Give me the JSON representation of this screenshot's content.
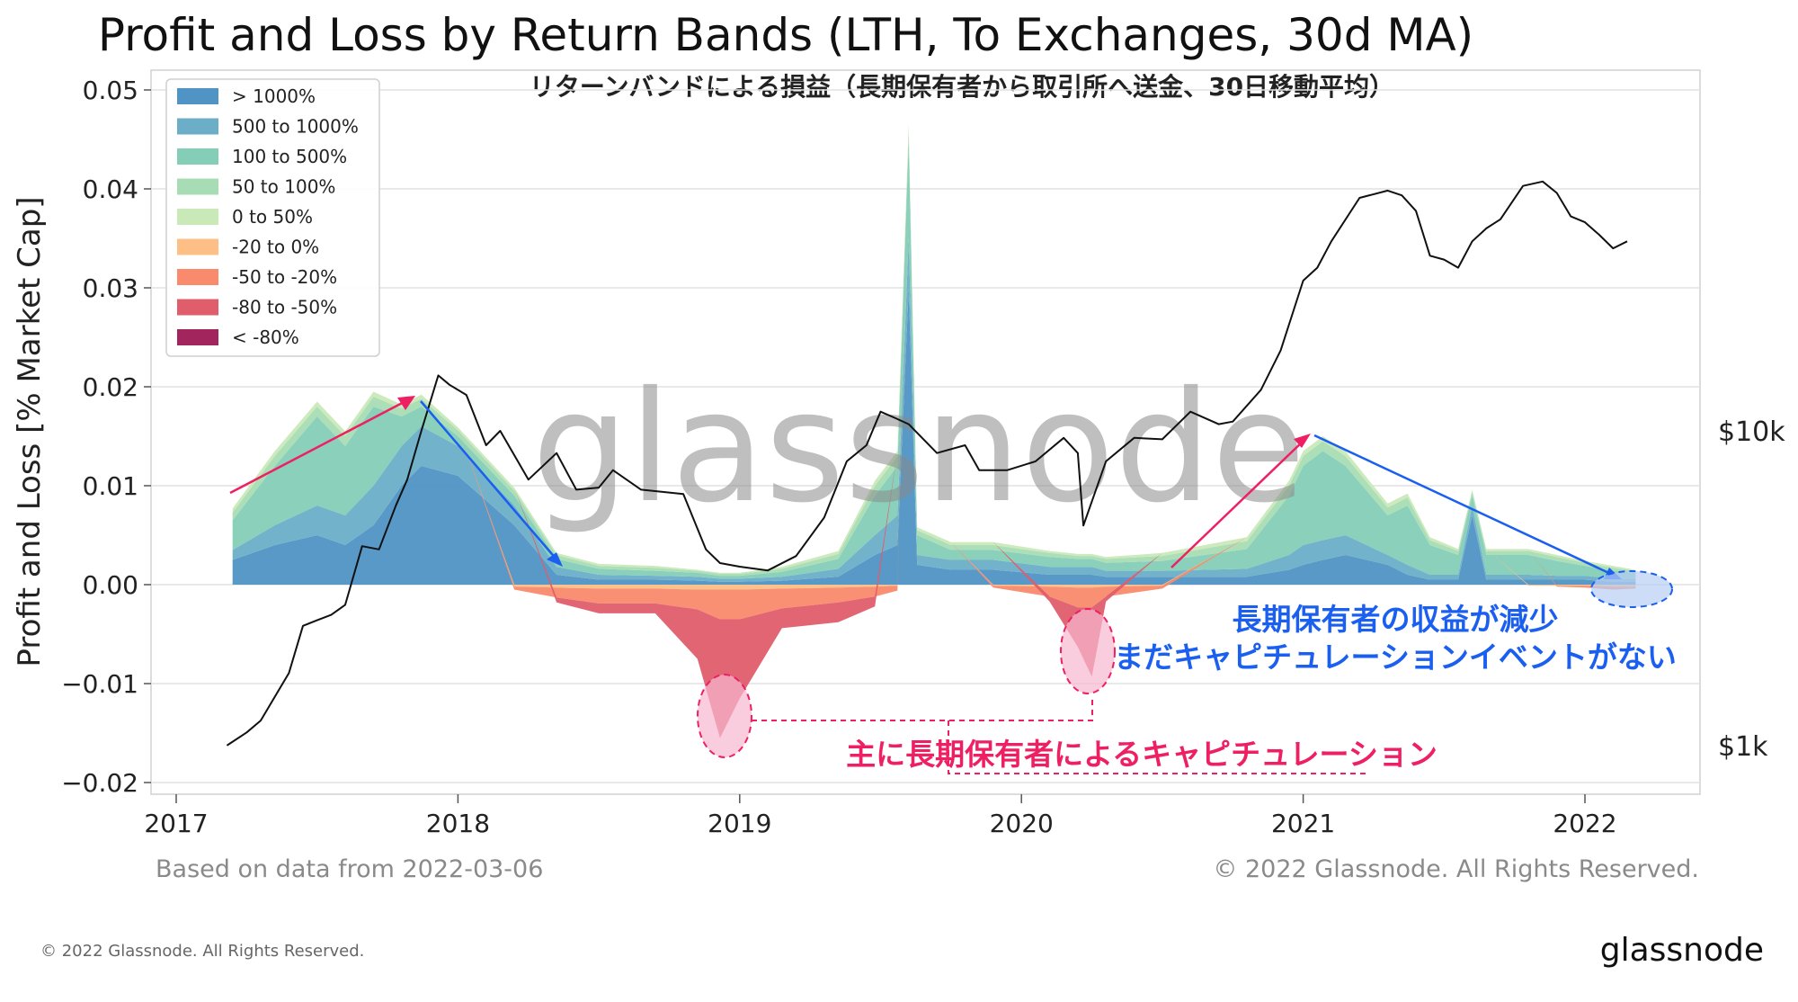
{
  "title": "Profit and Loss by Return Bands (LTH, To Exchanges, 30d MA)",
  "subtitle": "リターンバンドによる損益（長期保有者から取引所へ送金、30日移動平均）",
  "watermark": "glassnode",
  "footer": {
    "left": "Based on data from 2022-03-06",
    "right": "© 2022 Glassnode. All Rights Reserved.",
    "bottom_left": "© 2022 Glassnode. All Rights Reserved.",
    "bottom_brand": "glassnode"
  },
  "annotations": {
    "blue_line1": "長期保有者の収益が減少",
    "blue_line2": "まだキャピチュレーションイベントがない",
    "red": "主に長期保有者によるキャピチュレーション",
    "colors": {
      "blue": "#1a5ff0",
      "red": "#ee1f63"
    }
  },
  "chart_data": {
    "type": "area",
    "title": "Profit and Loss by Return Bands (LTH, To Exchanges, 30d MA)",
    "ylabel": "Profit and Loss [% Market Cap]",
    "xlabel": "",
    "ylim": [
      -0.02,
      0.05
    ],
    "xlim": [
      2016.95,
      2022.4
    ],
    "y_ticks": [
      "0.05",
      "0.04",
      "0.03",
      "0.02",
      "0.01",
      "0.00",
      "−0.01",
      "−0.02"
    ],
    "y_tick_values": [
      0.05,
      0.04,
      0.03,
      0.02,
      0.01,
      0.0,
      -0.01,
      -0.02
    ],
    "x_ticks": [
      "2017",
      "2018",
      "2019",
      "2020",
      "2021",
      "2022"
    ],
    "x_tick_values": [
      2017,
      2018,
      2019,
      2020,
      2021,
      2022
    ],
    "right_axis": {
      "ticks": [
        "$10k",
        "$1k"
      ],
      "values": [
        10000,
        1000
      ],
      "scale": "log",
      "range": [
        700,
        140000
      ]
    },
    "grid": true,
    "legend_position": "top-left",
    "x": [
      2017.2,
      2017.35,
      2017.5,
      2017.6,
      2017.7,
      2017.8,
      2017.87,
      2018.0,
      2018.2,
      2018.35,
      2018.5,
      2018.7,
      2018.85,
      2018.93,
      2019.0,
      2019.15,
      2019.35,
      2019.48,
      2019.56,
      2019.6,
      2019.63,
      2019.75,
      2019.9,
      2020.1,
      2020.2,
      2020.25,
      2020.3,
      2020.5,
      2020.8,
      2020.95,
      2021.0,
      2021.07,
      2021.15,
      2021.3,
      2021.37,
      2021.45,
      2021.55,
      2021.6,
      2021.65,
      2021.8,
      2021.9,
      2022.0,
      2022.1,
      2022.18
    ],
    "series": [
      {
        "name": "> 1000%",
        "color": "#4f94c4",
        "values": [
          0.0025,
          0.004,
          0.005,
          0.004,
          0.006,
          0.01,
          0.012,
          0.011,
          0.006,
          0.001,
          0.0005,
          0.0005,
          0.0004,
          0.0003,
          0.0003,
          0.0004,
          0.0008,
          0.003,
          0.004,
          0.03,
          0.002,
          0.0015,
          0.0015,
          0.001,
          0.001,
          0.001,
          0.0008,
          0.0008,
          0.0008,
          0.0015,
          0.002,
          0.0025,
          0.003,
          0.002,
          0.001,
          0.0005,
          0.0005,
          0.007,
          0.0005,
          0.0005,
          0.0005,
          0.0005,
          0.0003,
          0.0003
        ]
      },
      {
        "name": "500 to 1000%",
        "color": "#6caec8",
        "values": [
          0.001,
          0.002,
          0.003,
          0.003,
          0.004,
          0.004,
          0.004,
          0.003,
          0.002,
          0.0008,
          0.0005,
          0.0004,
          0.0004,
          0.0003,
          0.0003,
          0.0004,
          0.0008,
          0.002,
          0.003,
          0.005,
          0.001,
          0.001,
          0.001,
          0.0008,
          0.0008,
          0.0008,
          0.0006,
          0.0006,
          0.0008,
          0.0015,
          0.002,
          0.002,
          0.002,
          0.001,
          0.001,
          0.0005,
          0.0005,
          0.001,
          0.0005,
          0.0005,
          0.0004,
          0.0004,
          0.0003,
          0.0003
        ]
      },
      {
        "name": "100 to 500%",
        "color": "#84cdb7",
        "values": [
          0.003,
          0.006,
          0.009,
          0.007,
          0.008,
          0.003,
          0.002,
          0.001,
          0.001,
          0.0008,
          0.0006,
          0.0005,
          0.0004,
          0.0003,
          0.0003,
          0.0005,
          0.001,
          0.004,
          0.005,
          0.01,
          0.002,
          0.001,
          0.001,
          0.001,
          0.0008,
          0.0008,
          0.0008,
          0.001,
          0.002,
          0.006,
          0.008,
          0.009,
          0.007,
          0.004,
          0.006,
          0.003,
          0.002,
          0.001,
          0.002,
          0.002,
          0.0015,
          0.001,
          0.0008,
          0.0006
        ]
      },
      {
        "name": "50 to 100%",
        "color": "#a8dcb4",
        "values": [
          0.0008,
          0.001,
          0.001,
          0.001,
          0.001,
          0.0008,
          0.0008,
          0.0006,
          0.0005,
          0.0004,
          0.0003,
          0.0003,
          0.0002,
          0.0002,
          0.0002,
          0.0003,
          0.0005,
          0.001,
          0.001,
          0.001,
          0.0005,
          0.0005,
          0.0005,
          0.0004,
          0.0003,
          0.0003,
          0.0004,
          0.0005,
          0.0008,
          0.001,
          0.001,
          0.001,
          0.001,
          0.0008,
          0.0008,
          0.0005,
          0.0004,
          0.0004,
          0.0004,
          0.0004,
          0.0004,
          0.0003,
          0.0003,
          0.0002
        ]
      },
      {
        "name": "0 to 50%",
        "color": "#c9e9b8",
        "values": [
          0.0004,
          0.0005,
          0.0005,
          0.0005,
          0.0005,
          0.0004,
          0.0004,
          0.0003,
          0.0003,
          0.0002,
          0.0002,
          0.0002,
          0.0001,
          0.0001,
          0.0001,
          0.0002,
          0.0003,
          0.0005,
          0.0005,
          0.0005,
          0.0003,
          0.0003,
          0.0003,
          0.0002,
          0.0002,
          0.0002,
          0.0002,
          0.0003,
          0.0004,
          0.0005,
          0.0005,
          0.0005,
          0.0005,
          0.0004,
          0.0004,
          0.0003,
          0.0002,
          0.0002,
          0.0002,
          0.0002,
          0.0002,
          0.0002,
          0.0002,
          0.0001
        ]
      },
      {
        "name": "-20 to 0%",
        "color": "#fdbf86",
        "values": [
          0,
          0,
          0,
          0,
          0,
          0,
          0,
          0,
          -0.0002,
          -0.0003,
          -0.0004,
          -0.0004,
          -0.0005,
          -0.0005,
          -0.0005,
          -0.0004,
          -0.0003,
          -0.0002,
          -0.0001,
          0,
          0,
          0,
          -0.0001,
          -0.0002,
          -0.0003,
          -0.0003,
          -0.0002,
          -0.0001,
          0,
          0,
          0,
          0,
          0,
          0,
          0,
          0,
          0,
          0,
          0,
          -0.0001,
          -0.0001,
          -0.0001,
          -0.0002,
          -0.0002
        ]
      },
      {
        "name": "-50 to -20%",
        "color": "#f98a6b",
        "values": [
          0,
          0,
          0,
          0,
          0,
          0,
          0,
          0,
          -0.0003,
          -0.001,
          -0.0015,
          -0.0015,
          -0.002,
          -0.003,
          -0.003,
          -0.002,
          -0.0015,
          -0.001,
          -0.0005,
          0,
          0,
          0,
          -0.0002,
          -0.001,
          -0.002,
          -0.002,
          -0.001,
          -0.0003,
          0,
          0,
          0,
          0,
          0,
          0,
          0,
          0,
          0,
          0,
          0,
          0,
          -0.0001,
          -0.0002,
          -0.0003,
          -0.0002
        ]
      },
      {
        "name": "-80 to -50%",
        "color": "#e05d6b",
        "values": [
          0,
          0,
          0,
          0,
          0,
          0,
          0,
          0,
          0,
          -0.0005,
          -0.001,
          -0.001,
          -0.005,
          -0.012,
          -0.008,
          -0.002,
          -0.002,
          -0.001,
          0,
          0,
          0,
          0,
          0,
          -0.0005,
          -0.004,
          -0.007,
          -0.0005,
          0,
          0,
          0,
          0,
          0,
          0,
          0,
          0,
          0,
          0,
          0,
          0,
          0,
          0,
          0,
          0,
          0
        ]
      },
      {
        "name": "< -80%",
        "color": "#a3255e",
        "values": [
          0,
          0,
          0,
          0,
          0,
          0,
          0,
          0,
          0,
          0,
          0,
          0,
          0,
          0,
          0,
          0,
          0,
          0,
          0,
          0,
          0,
          0,
          0,
          0,
          0,
          0,
          0,
          0,
          0,
          0,
          0,
          0,
          0,
          0,
          0,
          0,
          0,
          0,
          0,
          0,
          0,
          0,
          0,
          0
        ]
      }
    ],
    "price": {
      "x": [
        2017.18,
        2017.25,
        2017.3,
        2017.4,
        2017.45,
        2017.5,
        2017.55,
        2017.6,
        2017.66,
        2017.72,
        2017.78,
        2017.82,
        2017.87,
        2017.93,
        2017.97,
        2018.03,
        2018.1,
        2018.15,
        2018.25,
        2018.35,
        2018.42,
        2018.5,
        2018.55,
        2018.65,
        2018.8,
        2018.88,
        2018.93,
        2019.0,
        2019.1,
        2019.2,
        2019.3,
        2019.38,
        2019.45,
        2019.5,
        2019.55,
        2019.6,
        2019.7,
        2019.8,
        2019.85,
        2019.95,
        2020.05,
        2020.15,
        2020.2,
        2020.22,
        2020.3,
        2020.4,
        2020.5,
        2020.6,
        2020.7,
        2020.75,
        2020.85,
        2020.92,
        2021.0,
        2021.05,
        2021.1,
        2021.2,
        2021.3,
        2021.35,
        2021.4,
        2021.45,
        2021.5,
        2021.55,
        2021.6,
        2021.65,
        2021.7,
        2021.78,
        2021.85,
        2021.9,
        2021.95,
        2022.0,
        2022.05,
        2022.1,
        2022.15
      ],
      "values": [
        1000,
        1100,
        1200,
        1700,
        2400,
        2500,
        2600,
        2800,
        4300,
        4200,
        5800,
        7000,
        10000,
        15000,
        14000,
        13000,
        9000,
        10000,
        7000,
        8500,
        6500,
        6600,
        7500,
        6500,
        6300,
        4200,
        3800,
        3700,
        3600,
        4000,
        5300,
        8000,
        9000,
        11500,
        11000,
        10500,
        8500,
        9000,
        7500,
        7500,
        8000,
        9500,
        8500,
        5000,
        8000,
        9500,
        9400,
        11500,
        10500,
        10700,
        13500,
        18000,
        30000,
        33000,
        40000,
        55000,
        58000,
        56000,
        50000,
        36000,
        35000,
        33000,
        40000,
        44000,
        47000,
        60000,
        62000,
        57000,
        48000,
        46000,
        42000,
        38000,
        40000
      ]
    }
  }
}
